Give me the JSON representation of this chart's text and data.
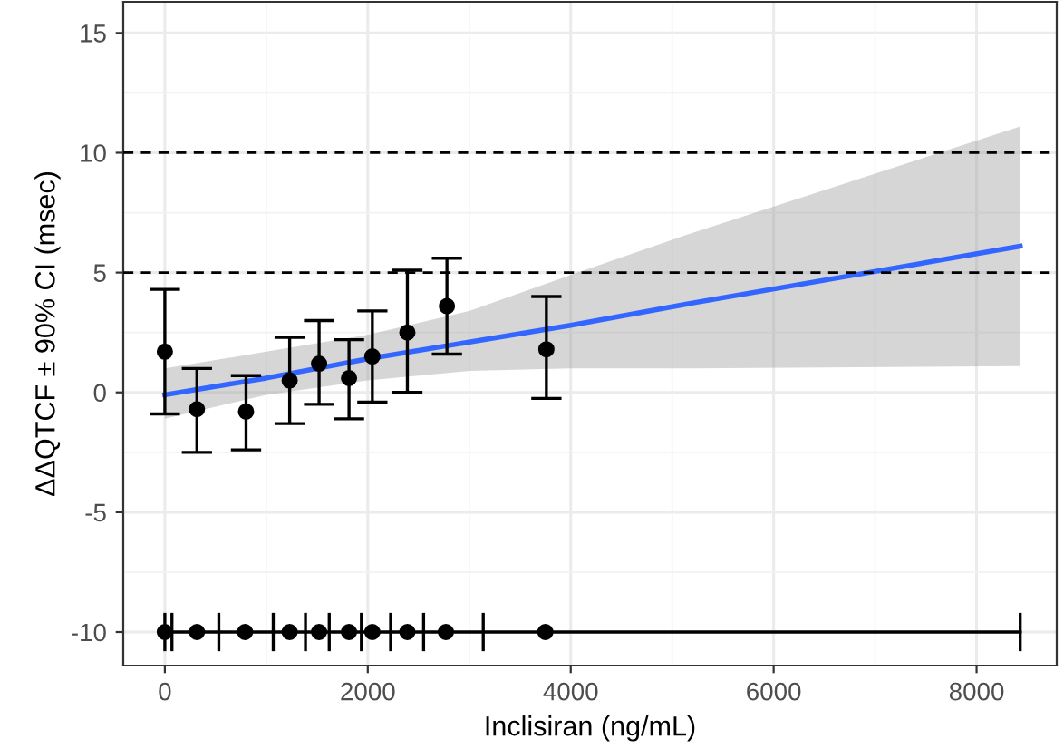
{
  "chart_data": {
    "type": "scatter",
    "xlabel": "Inclisiran (ng/mL)",
    "ylabel": "ΔΔQTCF ± 90% CI (msec)",
    "xlim": [
      -410,
      8790
    ],
    "ylim": [
      -11.4,
      16.3
    ],
    "xticks": [
      0,
      2000,
      4000,
      6000,
      8000
    ],
    "yticks": [
      -10,
      -5,
      0,
      5,
      10,
      15
    ],
    "grid": true,
    "legend": false,
    "ref_lines": [
      {
        "axis": "y",
        "value": 5,
        "line_style": "dashed",
        "color": "#000000"
      },
      {
        "axis": "y",
        "value": 10,
        "line_style": "dashed",
        "color": "#000000"
      }
    ],
    "series": [
      {
        "type": "line",
        "color": "#3366ff",
        "marker": "none",
        "x": [
          0,
          1000,
          2000,
          3000,
          4000,
          5160,
          8430
        ],
        "values": [
          -0.1,
          0.6,
          1.4,
          2.1,
          2.8,
          3.7,
          6.1
        ],
        "lower": [
          -1.1,
          -0.1,
          0.5,
          0.9,
          1.0,
          1.0,
          1.1
        ],
        "upper": [
          1.0,
          1.7,
          2.4,
          3.4,
          4.9,
          6.6,
          11.1
        ]
      },
      {
        "color": "#000000",
        "marker": "circle",
        "x": [
          0,
          316,
          800,
          1230,
          1520,
          1815,
          2045,
          2390,
          2780,
          3760
        ],
        "values": [
          1.7,
          -0.7,
          -0.8,
          0.5,
          1.2,
          0.6,
          1.5,
          2.5,
          3.6,
          1.8
        ],
        "errors": [
          [
            -0.9,
            4.3
          ],
          [
            -2.5,
            1.0
          ],
          [
            -2.4,
            0.7
          ],
          [
            -1.3,
            2.3
          ],
          [
            -0.5,
            3.0
          ],
          [
            -1.1,
            2.2
          ],
          [
            -0.4,
            3.4
          ],
          [
            0.0,
            5.1
          ],
          [
            1.6,
            5.6
          ],
          [
            -0.25,
            4.0
          ]
        ]
      },
      {
        "type": "line",
        "color": "#000000",
        "marker": "none",
        "x": [
          0,
          70,
          532,
          1068,
          1386,
          1620,
          1937,
          2225,
          2550,
          3138,
          8430
        ],
        "values": [
          -10,
          -10,
          -10,
          -10,
          -10,
          -10,
          -10,
          -10,
          -10,
          -10,
          -10
        ],
        "errors": [
          0.8,
          0.8,
          0.8,
          0.8,
          0.8,
          0.8,
          0.8,
          0.8,
          0.8,
          0.8,
          0.8
        ]
      },
      {
        "color": "#000000",
        "marker": "circle",
        "x": [
          0,
          316,
          790,
          1230,
          1520,
          1815,
          2045,
          2390,
          2770,
          3750
        ],
        "values": [
          -10,
          -10,
          -10,
          -10,
          -10,
          -10,
          -10,
          -10,
          -10,
          -10
        ]
      }
    ]
  }
}
